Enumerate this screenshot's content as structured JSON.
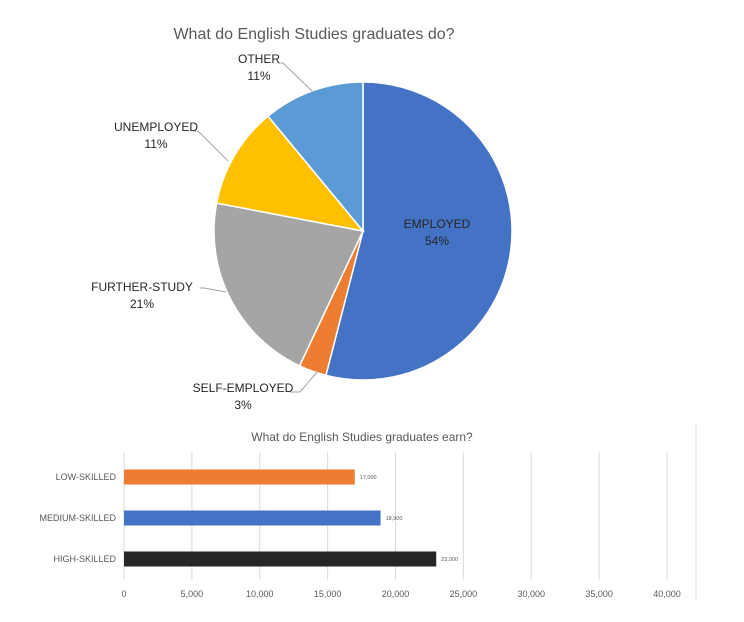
{
  "chart_data": [
    {
      "type": "pie",
      "title": "What do English Studies graduates do?",
      "slices": [
        {
          "label": "EMPLOYED",
          "value": 54,
          "pct": "54%",
          "color": "#4472C4"
        },
        {
          "label": "SELF-EMPLOYED",
          "value": 3,
          "pct": "3%",
          "color": "#ED7D31"
        },
        {
          "label": "FURTHER-STUDY",
          "value": 21,
          "pct": "21%",
          "color": "#A5A5A5"
        },
        {
          "label": "UNEMPLOYED",
          "value": 11,
          "pct": "11%",
          "color": "#FFC000"
        },
        {
          "label": "OTHER",
          "value": 11,
          "pct": "11%",
          "color": "#5B9BD5"
        }
      ],
      "legend": "none"
    },
    {
      "type": "bar",
      "orientation": "horizontal",
      "title": "What do English Studies graduates earn?",
      "categories": [
        "LOW-SKILLED",
        "MEDIUM-SKILLED",
        "HIGH-SKILLED"
      ],
      "values": [
        17000,
        18900,
        23000
      ],
      "value_labels": [
        "17,000",
        "18,900",
        "23,000"
      ],
      "colors": [
        "#ED7D31",
        "#4472C4",
        "#262626"
      ],
      "xlim": [
        0,
        40000
      ],
      "xticks": [
        "0",
        "5,000",
        "10,000",
        "15,000",
        "20,000",
        "25,000",
        "30,000",
        "35,000",
        "40,000"
      ],
      "grid": true
    }
  ]
}
